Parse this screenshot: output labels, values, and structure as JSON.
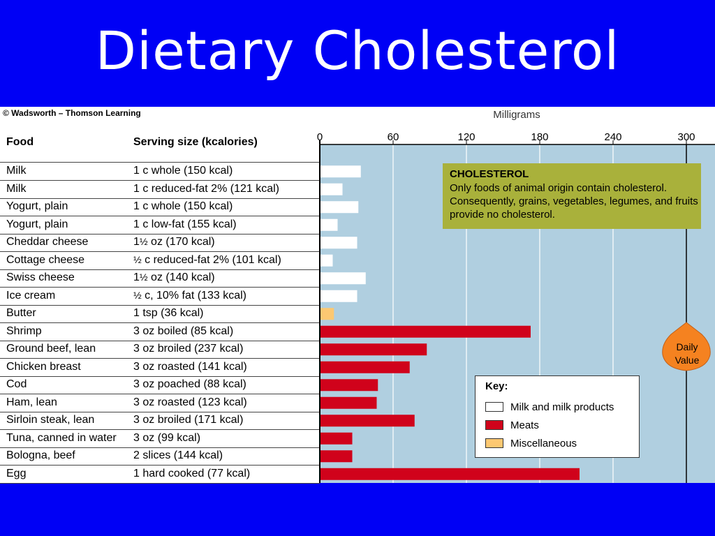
{
  "slide": {
    "title": "Dietary Cholesterol",
    "copyright": "© Wadsworth – Thomson Learning"
  },
  "table": {
    "food_header": "Food",
    "serving_header": "Serving size (kcalories)"
  },
  "rows": [
    {
      "food": "Milk",
      "serving": [
        "1 c whole (150 kcal)"
      ]
    },
    {
      "food": "Milk",
      "serving": [
        "1 c reduced-fat 2% (121 kcal)"
      ]
    },
    {
      "food": "Yogurt, plain",
      "serving": [
        "1 c whole (150 kcal)"
      ]
    },
    {
      "food": "Yogurt, plain",
      "serving": [
        "1 c low-fat (155 kcal)"
      ]
    },
    {
      "food": "Cheddar cheese",
      "serving": [
        "1",
        "½",
        " oz (170 kcal)"
      ]
    },
    {
      "food": "Cottage cheese",
      "serving": [
        "",
        "½",
        " c reduced-fat 2% (101 kcal)"
      ]
    },
    {
      "food": "Swiss cheese",
      "serving": [
        "1",
        "½",
        " oz (140 kcal)"
      ]
    },
    {
      "food": "Ice cream",
      "serving": [
        "",
        "½",
        " c, 10% fat (133 kcal)"
      ]
    },
    {
      "food": "Butter",
      "serving": [
        "1 tsp (36 kcal)"
      ]
    },
    {
      "food": "Shrimp",
      "serving": [
        "3 oz boiled (85 kcal)"
      ]
    },
    {
      "food": "Ground beef, lean",
      "serving": [
        "3 oz broiled (237 kcal)"
      ]
    },
    {
      "food": "Chicken breast",
      "serving": [
        "3 oz roasted (141 kcal)"
      ]
    },
    {
      "food": "Cod",
      "serving": [
        "3 oz poached (88 kcal)"
      ]
    },
    {
      "food": "Ham, lean",
      "serving": [
        "3 oz roasted (123 kcal)"
      ]
    },
    {
      "food": "Sirloin steak, lean",
      "serving": [
        "3 oz broiled (171 kcal)"
      ]
    },
    {
      "food": "Tuna, canned in water",
      "serving": [
        "3 oz (99 kcal)"
      ]
    },
    {
      "food": "Bologna, beef",
      "serving": [
        "2 slices (144 kcal)"
      ]
    },
    {
      "food": "Egg",
      "serving": [
        "1 hard cooked (77 kcal)"
      ]
    }
  ],
  "chart_data": {
    "type": "bar",
    "orientation": "horizontal",
    "xlabel": "Milligrams",
    "xlim": [
      0,
      320
    ],
    "xticks": [
      0,
      60,
      120,
      180,
      240,
      300
    ],
    "grid": true,
    "categories": [
      "Milk",
      "Milk",
      "Yogurt, plain",
      "Yogurt, plain",
      "Cheddar cheese",
      "Cottage cheese",
      "Swiss cheese",
      "Ice cream",
      "Butter",
      "Shrimp",
      "Ground beef, lean",
      "Chicken breast",
      "Cod",
      "Ham, lean",
      "Sirloin steak, lean",
      "Tuna, canned in water",
      "Bologna, beef",
      "Egg"
    ],
    "values": [
      33,
      18,
      31,
      14,
      30,
      10,
      37,
      30,
      11,
      172,
      87,
      73,
      47,
      46,
      77,
      26,
      26,
      212
    ],
    "groups": [
      "milk",
      "milk",
      "milk",
      "milk",
      "milk",
      "milk",
      "milk",
      "milk",
      "misc",
      "meat",
      "meat",
      "meat",
      "meat",
      "meat",
      "meat",
      "meat",
      "meat",
      "meat"
    ],
    "reference_line": {
      "value": 300,
      "label": [
        "Daily",
        "Value"
      ]
    },
    "legend": {
      "title": "Key:",
      "placement": "bottom-right",
      "items": [
        {
          "group": "milk",
          "label": "Milk and milk products",
          "color": "#ffffff"
        },
        {
          "group": "meat",
          "label": "Meats",
          "color": "#d0021b"
        },
        {
          "group": "misc",
          "label": "Miscellaneous",
          "color": "#fcc872"
        }
      ]
    },
    "annotation": {
      "title": "CHOLESTEROL",
      "text": "Only foods of animal origin contain cholesterol. Consequently, grains, vegetables, legumes, and fruits provide no cholesterol."
    }
  },
  "colors": {
    "background": "#0000f5",
    "plot_background": "#b0cfe0",
    "annotation_background": "#a9b13b",
    "daily_value_marker": "#f58220"
  }
}
